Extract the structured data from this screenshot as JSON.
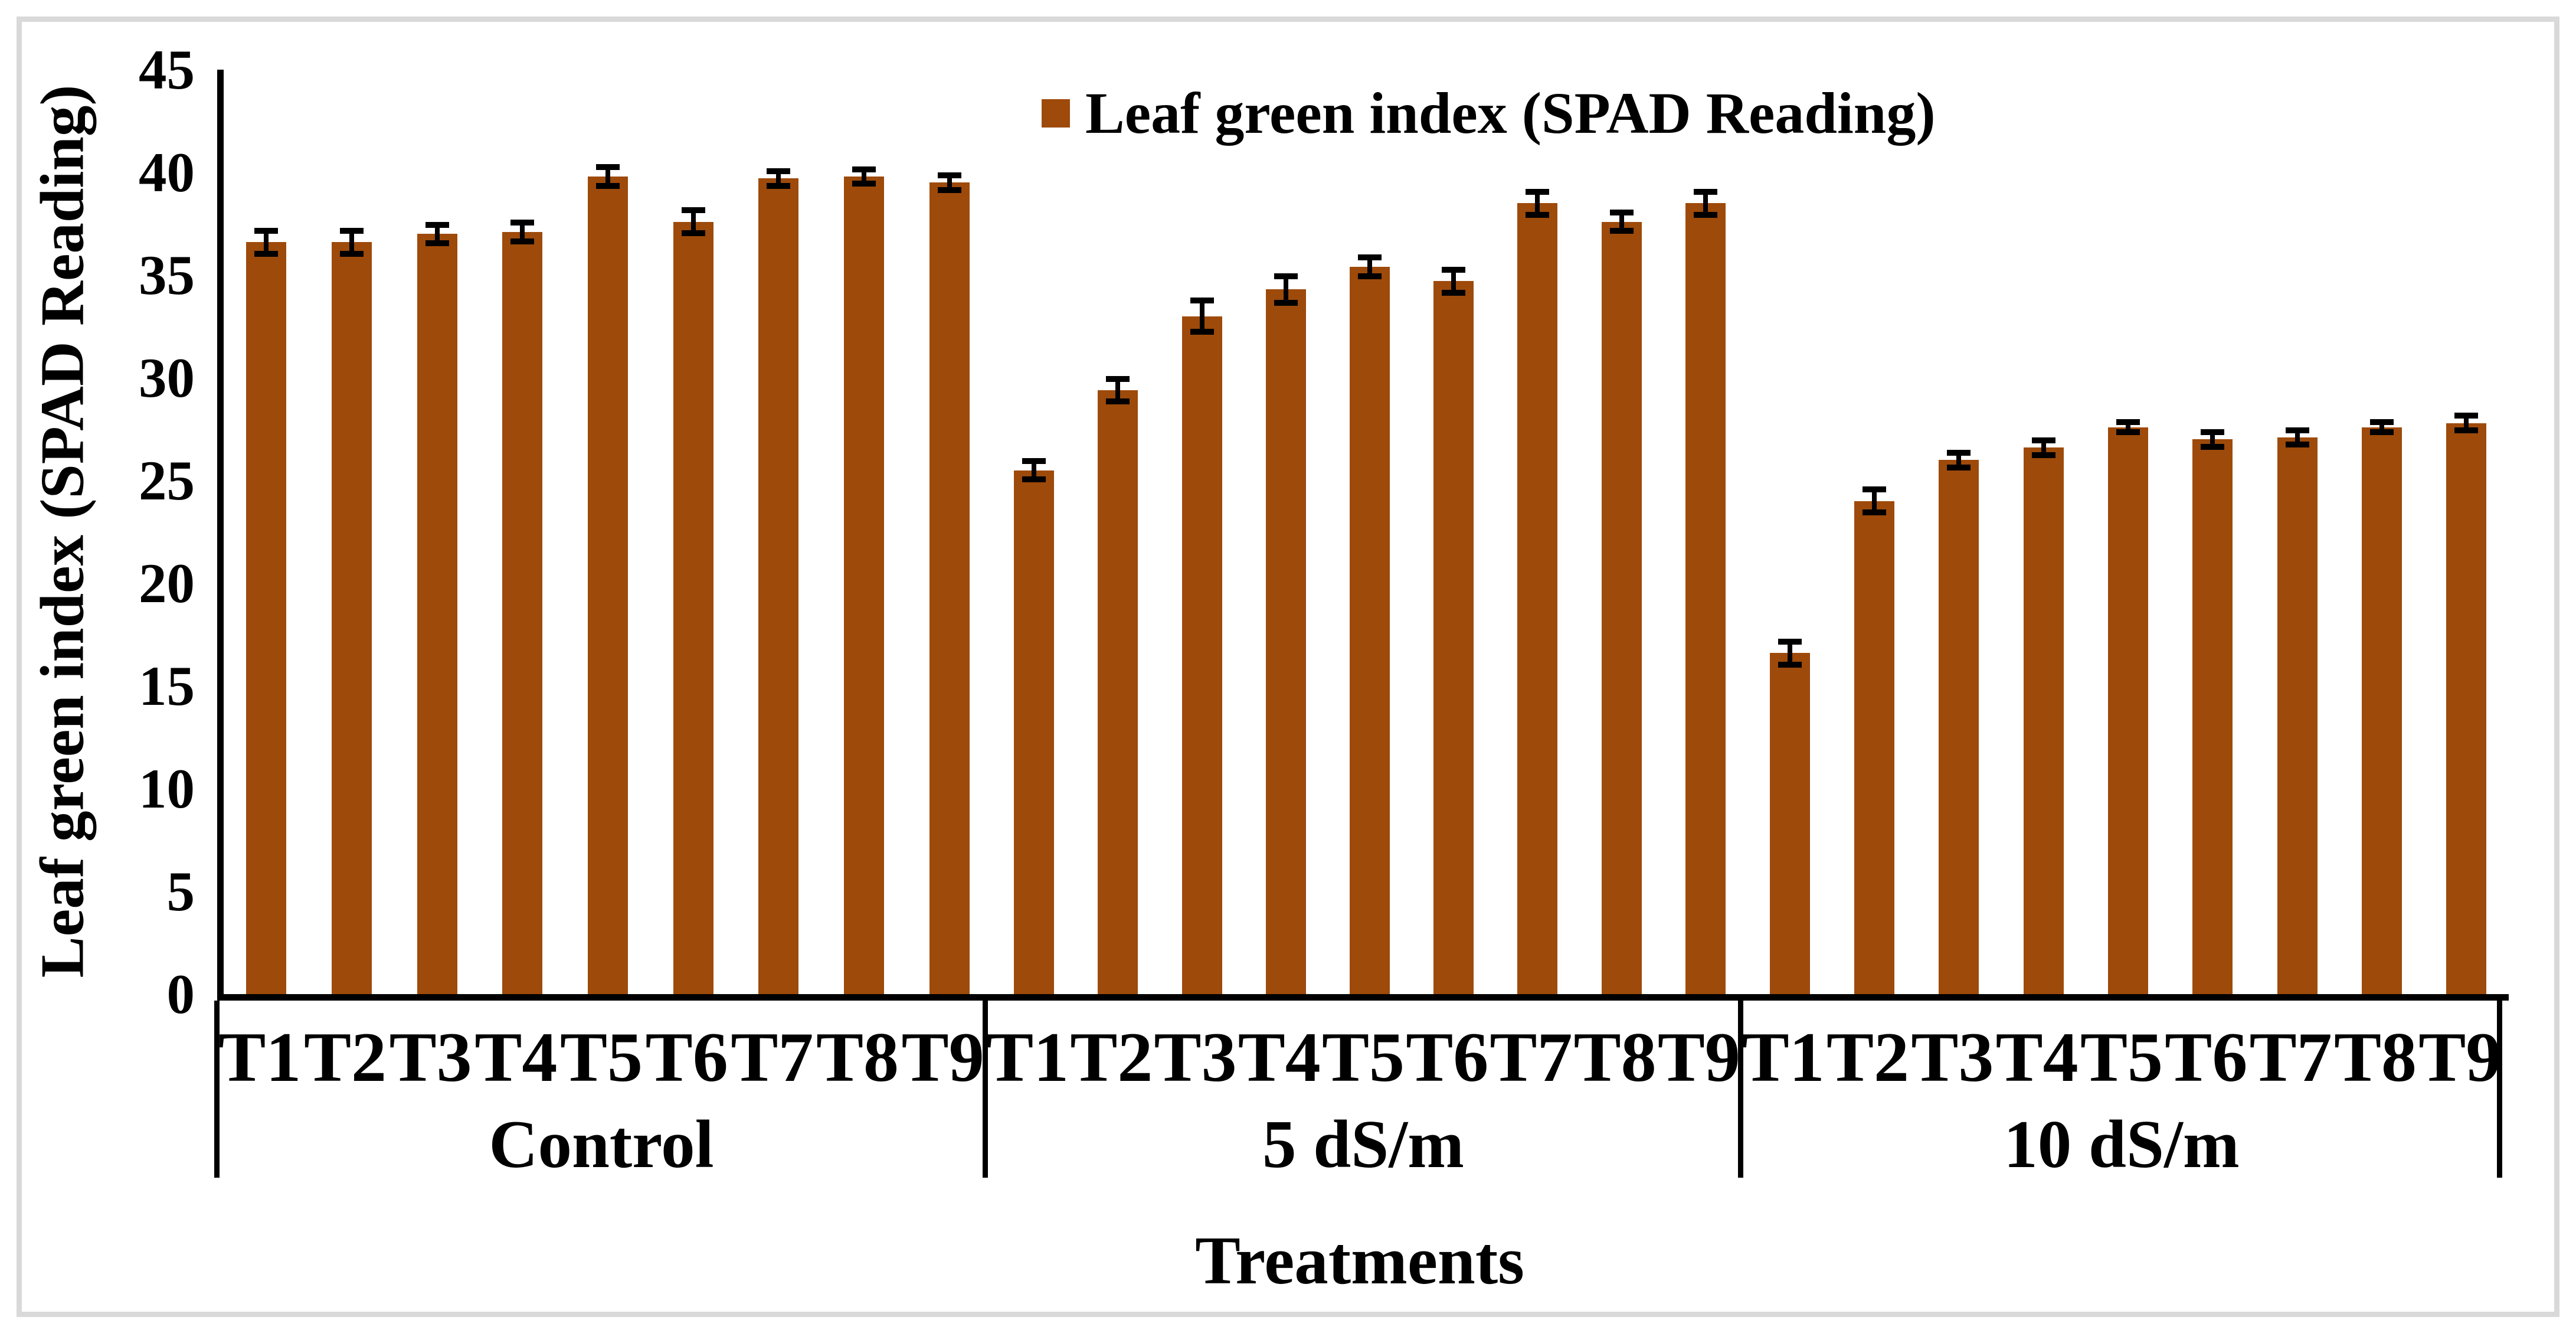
{
  "chart_data": {
    "type": "bar",
    "legend": "Leaf green index (SPAD Reading)",
    "ylabel": "Leaf green index (SPAD Reading)",
    "xlabel": "Treatments",
    "ylim": [
      0,
      45
    ],
    "yticks": [
      0,
      5,
      10,
      15,
      20,
      25,
      30,
      35,
      40,
      45
    ],
    "bar_color": "#9e4a0b",
    "axis_color": "#000000",
    "frame_color": "#d9d9d9",
    "grid": "off",
    "legend_position": "top-center",
    "categories": [
      "T1",
      "T2",
      "T3",
      "T4",
      "T5",
      "T6",
      "T7",
      "T8",
      "T9"
    ],
    "groups": [
      {
        "label": "Control",
        "values": [
          36.6,
          36.6,
          37.0,
          37.1,
          39.8,
          37.6,
          39.7,
          39.8,
          39.5
        ],
        "errors": [
          0.7,
          0.7,
          0.6,
          0.6,
          0.6,
          0.7,
          0.5,
          0.5,
          0.5
        ]
      },
      {
        "label": "5 dS/m",
        "values": [
          25.5,
          29.4,
          33.0,
          34.3,
          35.4,
          34.7,
          38.5,
          37.6,
          38.5
        ],
        "errors": [
          0.6,
          0.7,
          0.9,
          0.8,
          0.6,
          0.7,
          0.7,
          0.6,
          0.7
        ]
      },
      {
        "label": "10 dS/m",
        "values": [
          16.6,
          24.0,
          26.0,
          26.6,
          27.6,
          27.0,
          27.1,
          27.6,
          27.8
        ],
        "errors": [
          0.7,
          0.7,
          0.5,
          0.5,
          0.4,
          0.5,
          0.5,
          0.4,
          0.5
        ]
      }
    ]
  }
}
